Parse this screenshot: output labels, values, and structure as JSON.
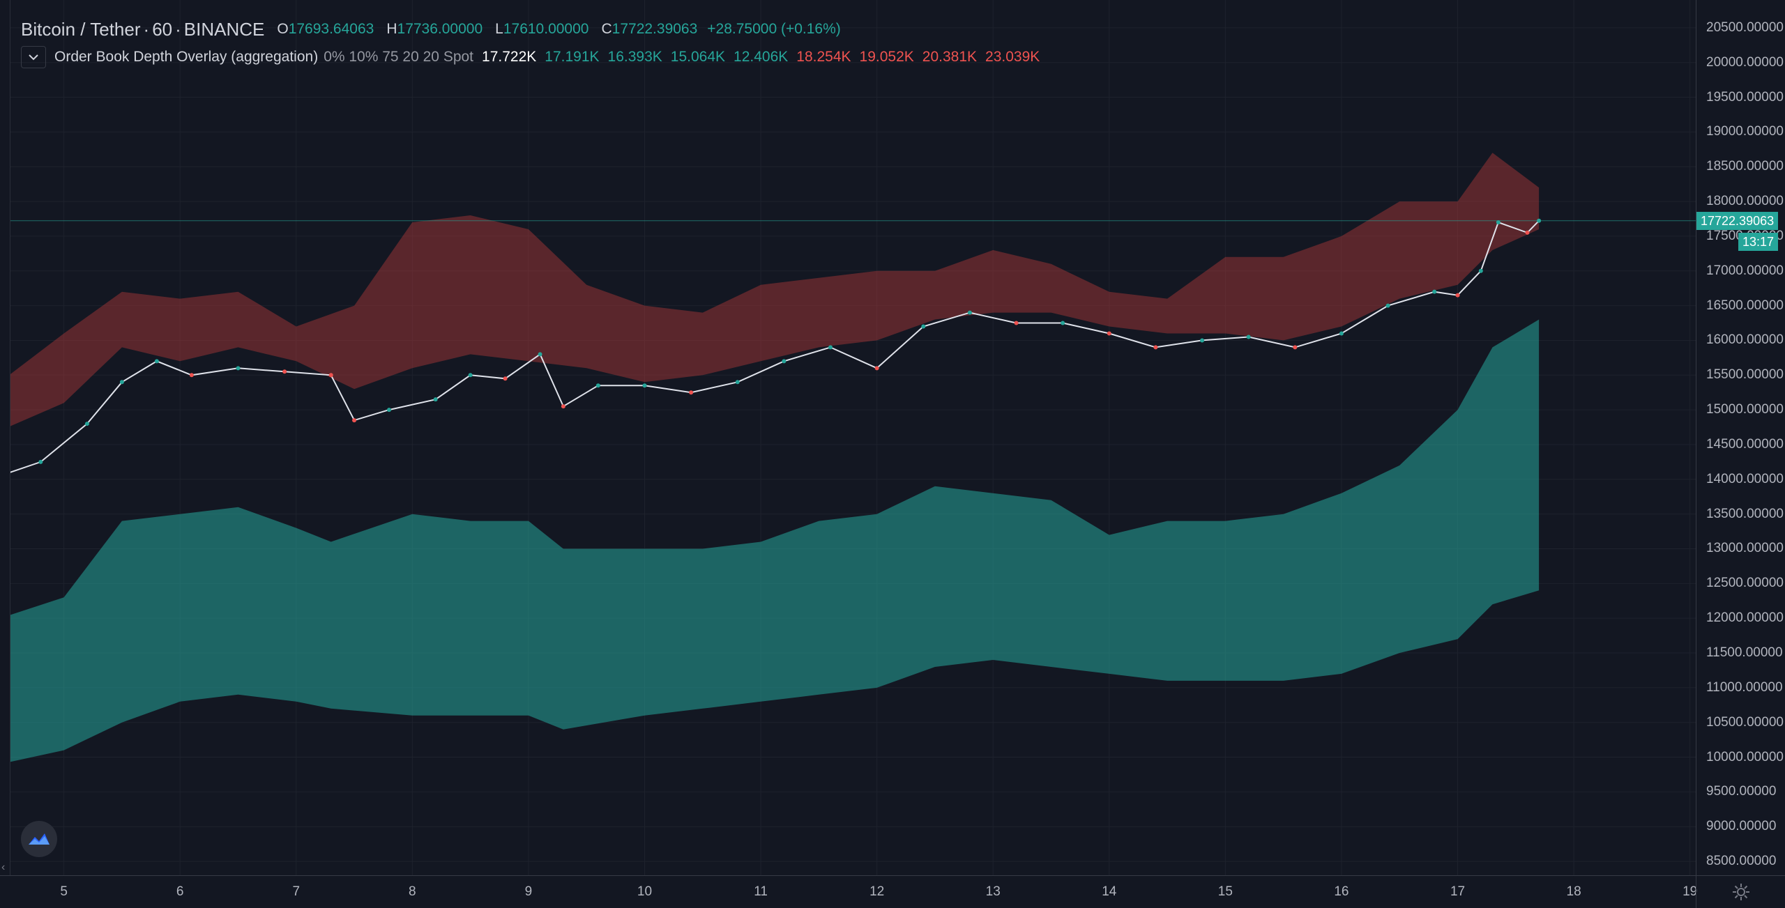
{
  "header": {
    "symbol": "Bitcoin / Tether",
    "interval": "60",
    "exchange": "BINANCE",
    "ohlc": {
      "o_label": "O",
      "o_value": "17693.64063",
      "h_label": "H",
      "h_value": "17736.00000",
      "l_label": "L",
      "l_value": "17610.00000",
      "c_label": "C",
      "c_value": "17722.39063",
      "change": "+28.75000 (+0.16%)"
    }
  },
  "indicator": {
    "collapse_icon": "chevron-down-icon",
    "name": "Order Book Depth Overlay (aggregation)",
    "params": "0% 10% 75 20 20 Spot",
    "values": [
      {
        "text": "17.722K",
        "color": "white"
      },
      {
        "text": "17.191K",
        "color": "green"
      },
      {
        "text": "16.393K",
        "color": "green"
      },
      {
        "text": "15.064K",
        "color": "green"
      },
      {
        "text": "12.406K",
        "color": "green"
      },
      {
        "text": "18.254K",
        "color": "red"
      },
      {
        "text": "19.052K",
        "color": "red"
      },
      {
        "text": "20.381K",
        "color": "red"
      },
      {
        "text": "23.039K",
        "color": "red"
      }
    ]
  },
  "price_axis": {
    "ticks": [
      "20500.00000",
      "20000.00000",
      "19500.00000",
      "19000.00000",
      "18500.00000",
      "18000.00000",
      "17500.00000",
      "17000.00000",
      "16500.00000",
      "16000.00000",
      "15500.00000",
      "15000.00000",
      "14500.00000",
      "14000.00000",
      "13500.00000",
      "13000.00000",
      "12500.00000",
      "12000.00000",
      "11500.00000",
      "11000.00000",
      "10500.00000",
      "10000.00000",
      "9500.00000",
      "9000.00000",
      "8500.00000"
    ],
    "last_price_tag": "17722.39063",
    "countdown_tag": "13:17"
  },
  "time_axis": {
    "ticks": [
      "5",
      "6",
      "7",
      "8",
      "9",
      "10",
      "11",
      "12",
      "13",
      "14",
      "15",
      "16",
      "17",
      "18",
      "19"
    ]
  },
  "colors": {
    "background": "#131722",
    "up": "#26a69a",
    "down": "#ef5350",
    "bid_zone": "#26a69a",
    "ask_zone": "#b23a3a"
  },
  "icons": {
    "logo": "tradingview-logo-icon",
    "settings": "gear-icon",
    "scroll_left": "chevron-left-icon"
  },
  "chart_data": {
    "type": "candlestick",
    "series": [
      {
        "name": "Bitcoin / Tether",
        "type": "candlestick",
        "x": [
          4.45,
          4.8,
          5.2,
          5.5,
          5.8,
          6.1,
          6.5,
          6.9,
          7.3,
          7.5,
          7.8,
          8.2,
          8.5,
          8.8,
          9.1,
          9.3,
          9.6,
          10.0,
          10.4,
          10.8,
          11.2,
          11.6,
          12.0,
          12.4,
          12.8,
          13.2,
          13.6,
          14.0,
          14.4,
          14.8,
          15.2,
          15.6,
          16.0,
          16.4,
          16.8,
          17.0,
          17.2,
          17.35,
          17.6,
          17.7
        ],
        "close": [
          14050,
          14250,
          14800,
          15400,
          15700,
          15500,
          15600,
          15550,
          15500,
          14850,
          15000,
          15150,
          15500,
          15450,
          15800,
          15050,
          15350,
          15350,
          15250,
          15400,
          15700,
          15900,
          15600,
          16200,
          16400,
          16250,
          16250,
          16100,
          15900,
          16000,
          16050,
          15900,
          16100,
          16500,
          16700,
          16650,
          17000,
          17700,
          17550,
          17722.39
        ]
      },
      {
        "name": "Bids",
        "type": "area",
        "x": [
          4.45,
          5.0,
          5.5,
          6.0,
          6.5,
          7.0,
          7.3,
          8.0,
          8.5,
          9.0,
          9.3,
          10.0,
          10.5,
          11.0,
          11.5,
          12.0,
          12.5,
          13.0,
          13.5,
          14.0,
          14.5,
          15.0,
          15.5,
          16.0,
          16.5,
          17.0,
          17.3,
          17.7
        ],
        "upper": [
          12000,
          12300,
          13400,
          13500,
          13600,
          13300,
          13100,
          13500,
          13400,
          13400,
          13000,
          13000,
          13000,
          13100,
          13400,
          13500,
          13900,
          13800,
          13700,
          13200,
          13400,
          13400,
          13500,
          13800,
          14200,
          15000,
          15900,
          16300
        ],
        "lower": [
          9900,
          10100,
          10500,
          10800,
          10900,
          10800,
          10700,
          10600,
          10600,
          10600,
          10400,
          10600,
          10700,
          10800,
          10900,
          11000,
          11300,
          11400,
          11300,
          11200,
          11100,
          11100,
          11100,
          11200,
          11500,
          11700,
          12200,
          12400
        ]
      },
      {
        "name": "Asks",
        "type": "area",
        "x": [
          4.45,
          5.0,
          5.5,
          6.0,
          6.5,
          7.0,
          7.5,
          8.0,
          8.5,
          9.0,
          9.5,
          10.0,
          10.5,
          11.0,
          11.5,
          12.0,
          12.5,
          13.0,
          13.5,
          14.0,
          14.5,
          15.0,
          15.5,
          16.0,
          16.5,
          17.0,
          17.3,
          17.7
        ],
        "upper": [
          15400,
          16100,
          16700,
          16600,
          16700,
          16200,
          16500,
          17700,
          17800,
          17600,
          16800,
          16500,
          16400,
          16800,
          16900,
          17000,
          17000,
          17300,
          17100,
          16700,
          16600,
          17200,
          17200,
          17500,
          18000,
          18000,
          18700,
          18200
        ],
        "lower": [
          14700,
          15100,
          15900,
          15700,
          15900,
          15700,
          15300,
          15600,
          15800,
          15700,
          15600,
          15400,
          15500,
          15700,
          15900,
          16000,
          16300,
          16400,
          16400,
          16200,
          16100,
          16100,
          16000,
          16200,
          16600,
          16800,
          17300,
          17600
        ]
      }
    ],
    "xlim": [
      4.45,
      19.05
    ],
    "ylim": [
      8300,
      20900
    ],
    "x_ticks": [
      "5",
      "6",
      "7",
      "8",
      "9",
      "10",
      "11",
      "12",
      "13",
      "14",
      "15",
      "16",
      "17",
      "18",
      "19"
    ],
    "y_ticks": [
      "20500.00000",
      "20000.00000",
      "19500.00000",
      "19000.00000",
      "18500.00000",
      "18000.00000",
      "17500.00000",
      "17000.00000",
      "16500.00000",
      "16000.00000",
      "15500.00000",
      "15000.00000",
      "14500.00000",
      "14000.00000",
      "13500.00000",
      "13000.00000",
      "12500.00000",
      "12000.00000",
      "11500.00000",
      "11000.00000",
      "10500.00000",
      "10000.00000",
      "9500.00000",
      "9000.00000",
      "8500.00000"
    ],
    "grid": true,
    "last_price": 17722.39
  }
}
